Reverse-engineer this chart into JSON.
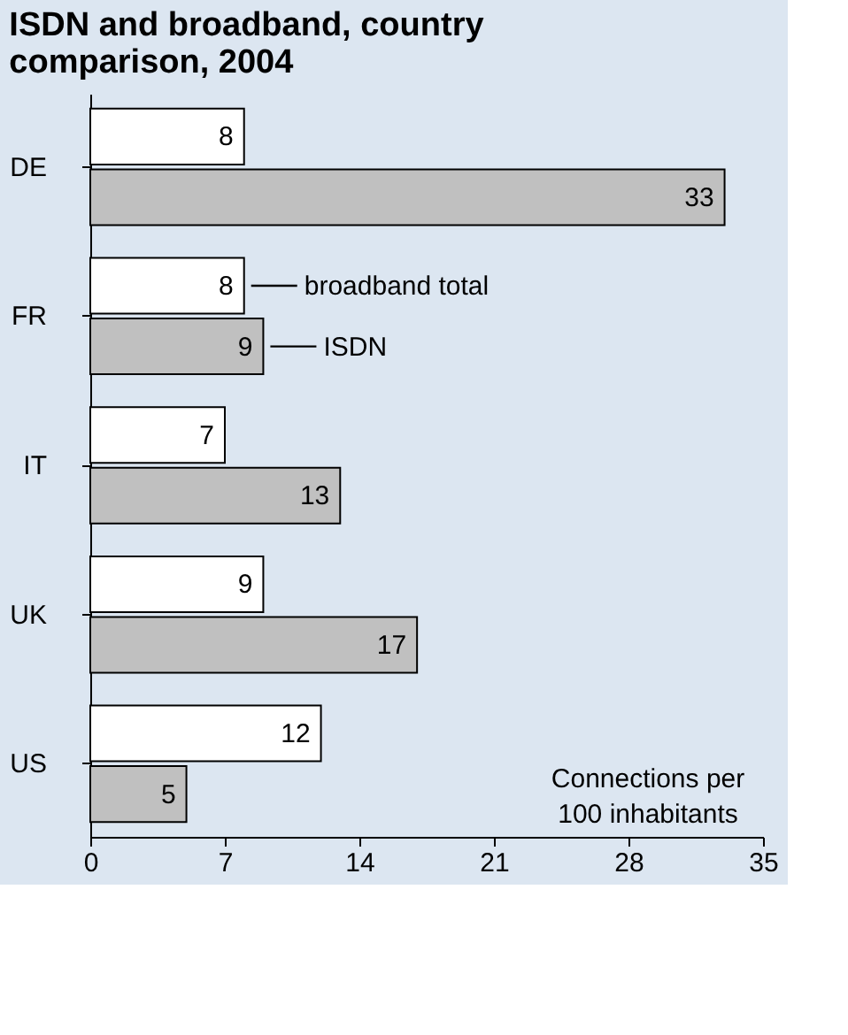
{
  "chart_data": {
    "type": "bar",
    "orientation": "horizontal",
    "title": "ISDN and broadband, country comparison, 2004",
    "categories": [
      "DE",
      "FR",
      "IT",
      "UK",
      "US"
    ],
    "series": [
      {
        "name": "broadband total",
        "color": "#ffffff",
        "values": [
          8,
          8,
          7,
          9,
          12
        ]
      },
      {
        "name": "ISDN",
        "color": "#c0c0c0",
        "values": [
          33,
          9,
          13,
          17,
          5
        ]
      }
    ],
    "xlim": [
      0,
      35
    ],
    "xticks": [
      0,
      7,
      14,
      21,
      28,
      35
    ],
    "grid": false,
    "legend": "top",
    "data_labels": true,
    "annotations": [
      "Connections per\n100 inhabitants"
    ]
  }
}
